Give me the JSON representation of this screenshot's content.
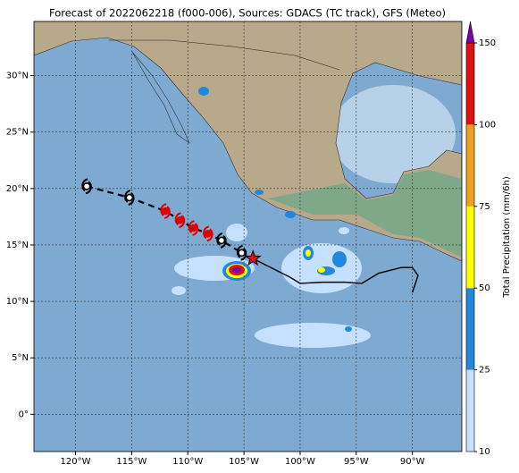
{
  "chart_data": {
    "type": "map",
    "title": "Forecast of 2022062218 (f000-006), Sources: GDACS (TC track), GFS (Meteo)",
    "xlim": [
      -123.7,
      -85.6
    ],
    "ylim": [
      -3.3,
      34.8
    ],
    "xticks": [
      {
        "value": -120,
        "label": "120°W"
      },
      {
        "value": -115,
        "label": "115°W"
      },
      {
        "value": -110,
        "label": "110°W"
      },
      {
        "value": -105,
        "label": "105°W"
      },
      {
        "value": -100,
        "label": "100°W"
      },
      {
        "value": -95,
        "label": "95°W"
      },
      {
        "value": -90,
        "label": "90°W"
      }
    ],
    "yticks": [
      {
        "value": 0,
        "label": "0°"
      },
      {
        "value": 5,
        "label": "5°N"
      },
      {
        "value": 10,
        "label": "10°N"
      },
      {
        "value": 15,
        "label": "15°N"
      },
      {
        "value": 20,
        "label": "20°N"
      },
      {
        "value": 25,
        "label": "25°N"
      },
      {
        "value": 30,
        "label": "30°N"
      }
    ],
    "grid": true,
    "forecast_track": {
      "lon": [
        -119.0,
        -115.2,
        -112.0,
        -110.7,
        -109.5,
        -108.2,
        -107.0,
        -105.2
      ],
      "lat": [
        20.2,
        19.2,
        18.0,
        17.2,
        16.5,
        16.0,
        15.4,
        14.3
      ],
      "colors": [
        "#000000",
        "#000000",
        "#dd0000",
        "#dd0000",
        "#dd0000",
        "#dd0000",
        "#000000",
        "#000000"
      ]
    },
    "current_position": {
      "lon": -104.2,
      "lat": 13.8,
      "color": "#dd1111"
    },
    "past_track": {
      "lon": [
        -104.2,
        -103.0,
        -101.0,
        -100.0,
        -98.0,
        -96.0,
        -94.5,
        -93.0,
        -91.0,
        -90.0,
        -89.5,
        -90.0
      ],
      "lat": [
        13.8,
        13.2,
        12.2,
        11.6,
        11.7,
        11.7,
        11.6,
        12.5,
        13.0,
        13.0,
        12.3,
        10.8
      ]
    },
    "colorbar": {
      "label": "Total Precipitation (mm/6h)",
      "ticks": [
        10,
        25,
        50,
        75,
        100,
        150
      ],
      "colors": [
        "#c6e0ff",
        "#2288dd",
        "#ffff00",
        "#f0a020",
        "#dd1111"
      ],
      "extend_color": "#7a00b0"
    }
  }
}
